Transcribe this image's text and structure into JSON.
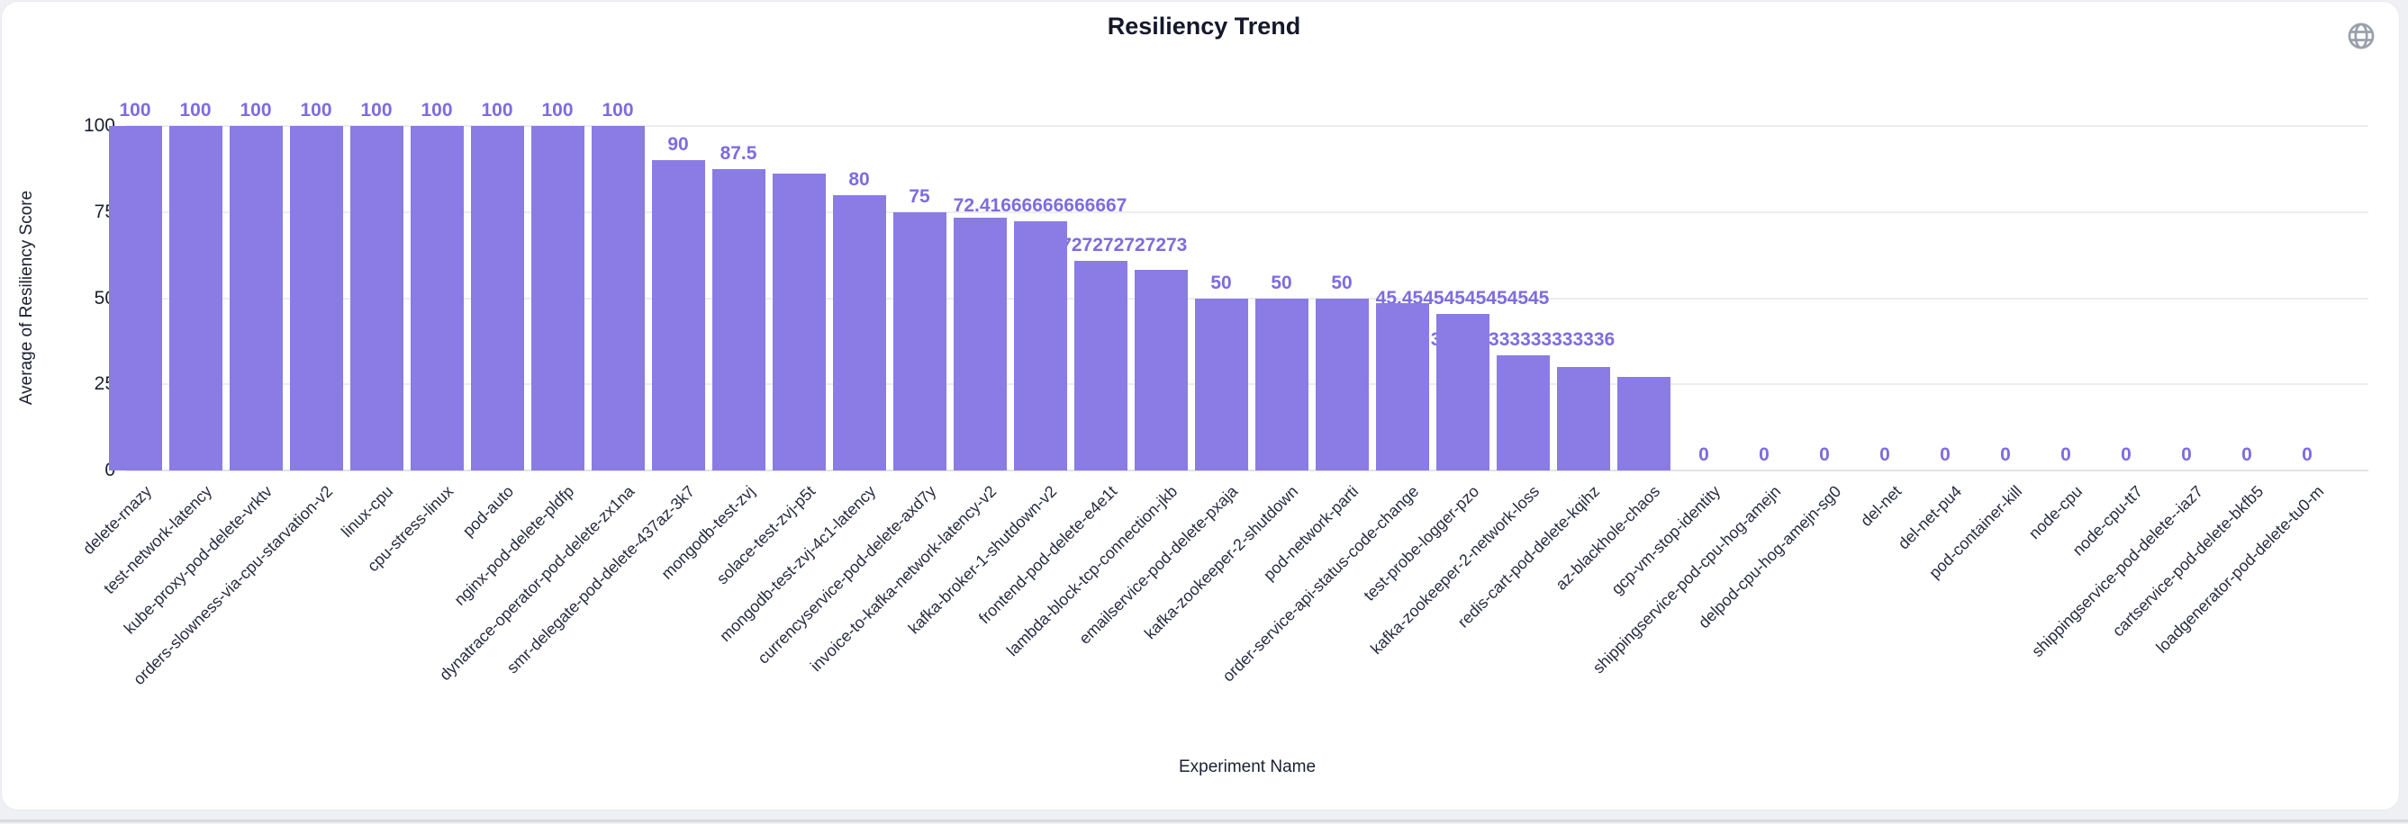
{
  "page": {
    "title": "Resiliency Trend",
    "icons": {
      "top_right": "globe"
    },
    "colors": {
      "bar": "#8a7ce4",
      "value_label": "#7d6ce0",
      "title_text": "#15182b",
      "axis_text": "#1d2030",
      "x_label_text": "#272c42",
      "gridline": "#ededf1",
      "card_background": "#ffffff",
      "page_background": "#eff0f3",
      "globe_icon": "#9aa1ad"
    }
  },
  "chart_data": {
    "type": "bar",
    "title": "Resiliency Trend",
    "xlabel": "Experiment Name",
    "ylabel": "Average of Resiliency Score",
    "ylim": [
      0,
      100
    ],
    "yticks": [
      0,
      25,
      50,
      75,
      100
    ],
    "grid": true,
    "legend_position": "none",
    "x_label_rotation_deg": 45,
    "series": [
      {
        "name": "Average of Resiliency Score",
        "data": [
          {
            "name": "delete-rnazy",
            "value": 100,
            "label": "100"
          },
          {
            "name": "test-network-latency",
            "value": 100,
            "label": "100"
          },
          {
            "name": "kube-proxy-pod-delete-vrktv",
            "value": 100,
            "label": "100"
          },
          {
            "name": "orders-slowness-via-cpu-starvation-v2",
            "value": 100,
            "label": "100"
          },
          {
            "name": "linux-cpu",
            "value": 100,
            "label": "100"
          },
          {
            "name": "cpu-stress-linux",
            "value": 100,
            "label": "100"
          },
          {
            "name": "pod-auto",
            "value": 100,
            "label": "100"
          },
          {
            "name": "nginx-pod-delete-pldfp",
            "value": 100,
            "label": "100"
          },
          {
            "name": "dynatrace-operator-pod-delete-zx1na",
            "value": 100,
            "label": "100"
          },
          {
            "name": "smr-delegate-pod-delete-437az-3k7",
            "value": 90,
            "label": "90"
          },
          {
            "name": "mongodb-test-zvj",
            "value": 87.5,
            "label": "87.5"
          },
          {
            "name": "solace-test-zvj-p5t",
            "value": 86.25,
            "label": null
          },
          {
            "name": "mongodb-test-zvj-4c1-latency",
            "value": 80,
            "label": "80"
          },
          {
            "name": "currencyservice-pod-delete-axd7y",
            "value": 75,
            "label": "75"
          },
          {
            "name": "invoice-to-kafka-network-latency-v2",
            "value": 73.33333333333333,
            "label": null
          },
          {
            "name": "kafka-broker-1-shutdown-v2",
            "value": 72.41666666666667,
            "label": "72.41666666666667"
          },
          {
            "name": "frontend-pod-delete-e4e1t",
            "value": 60.72727272727273,
            "label": "60.72727272727273"
          },
          {
            "name": "lambda-block-tcp-connection-jkb",
            "value": 58.333333333333336,
            "label": null
          },
          {
            "name": "emailservice-pod-delete-pxaja",
            "value": 50,
            "label": "50"
          },
          {
            "name": "kafka-zookeeper-2-shutdown",
            "value": 50,
            "label": "50"
          },
          {
            "name": "pod-network-parti",
            "value": 50,
            "label": "50"
          },
          {
            "name": "order-service-api-status-code-change",
            "value": 48.484848484848484,
            "label": null
          },
          {
            "name": "test-probe-logger-pzo",
            "value": 45.45454545454545,
            "label": "45.45454545454545"
          },
          {
            "name": "kafka-zookeeper-2-network-loss",
            "value": 33.333333333333336,
            "label": "33.333333333333336"
          },
          {
            "name": "redis-cart-pod-delete-kqihz",
            "value": 30,
            "label": null
          },
          {
            "name": "az-blackhole-chaos",
            "value": 27.272727272727273,
            "label": null
          },
          {
            "name": "gcp-vm-stop-identity",
            "value": 0,
            "label": "0"
          },
          {
            "name": "shippingservice-pod-cpu-hog-amejn",
            "value": 0,
            "label": "0"
          },
          {
            "name": "delpod-cpu-hog-amejn-sg0",
            "value": 0,
            "label": "0"
          },
          {
            "name": "del-net",
            "value": 0,
            "label": "0"
          },
          {
            "name": "del-net-pu4",
            "value": 0,
            "label": "0"
          },
          {
            "name": "pod-container-kill",
            "value": 0,
            "label": "0"
          },
          {
            "name": "node-cpu",
            "value": 0,
            "label": "0"
          },
          {
            "name": "node-cpu-tt7",
            "value": 0,
            "label": "0"
          },
          {
            "name": "shippingservice-pod-delete--iaz7",
            "value": 0,
            "label": "0"
          },
          {
            "name": "cartservice-pod-delete-bkfb5",
            "value": 0,
            "label": "0"
          },
          {
            "name": "loadgenerator-pod-delete-tu0-m",
            "value": 0,
            "label": "0"
          }
        ]
      }
    ]
  }
}
